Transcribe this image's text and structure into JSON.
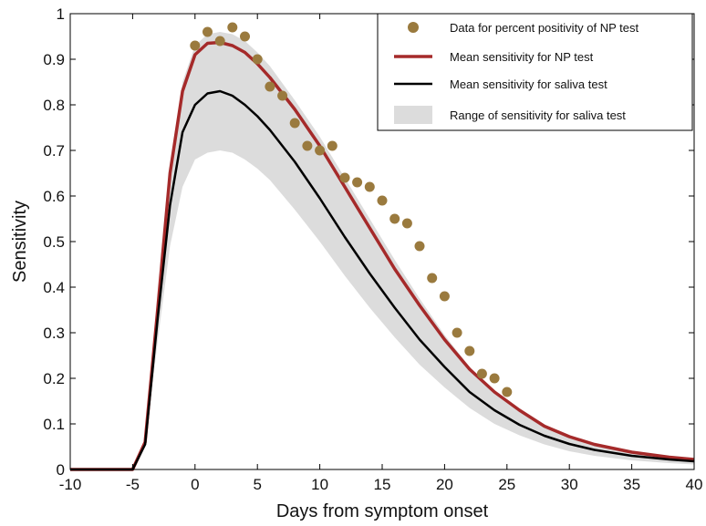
{
  "chart_data": {
    "type": "line",
    "xlabel": "Days from symptom onset",
    "ylabel": "Sensitivity",
    "xlim": [
      -10,
      40
    ],
    "ylim": [
      0,
      1
    ],
    "xticks": [
      -10,
      -5,
      0,
      5,
      10,
      15,
      20,
      25,
      30,
      35,
      40
    ],
    "yticks": [
      0,
      0.1,
      0.2,
      0.3,
      0.4,
      0.5,
      0.6,
      0.7,
      0.8,
      0.9,
      1
    ],
    "yticklabels": [
      "0",
      "0.1",
      "0.2",
      "0.3",
      "0.4",
      "0.5",
      "0.6",
      "0.7",
      "0.8",
      "0.9",
      "1"
    ],
    "grid": false,
    "legend_position": "top-right",
    "colors": {
      "data_points": "#9a7a3e",
      "np_mean": "#a52a2a",
      "saliva_mean": "#000000",
      "saliva_range": "#dcdcdc"
    },
    "series": [
      {
        "name": "Data for percent positivity of NP test",
        "kind": "scatter",
        "x": [
          0,
          1,
          2,
          3,
          4,
          5,
          6,
          7,
          8,
          9,
          10,
          11,
          12,
          13,
          14,
          15,
          16,
          17,
          18,
          19,
          20,
          21,
          22,
          23,
          24,
          25
        ],
        "y": [
          0.93,
          0.96,
          0.94,
          0.97,
          0.95,
          0.9,
          0.84,
          0.82,
          0.76,
          0.71,
          0.7,
          0.71,
          0.64,
          0.63,
          0.62,
          0.59,
          0.55,
          0.54,
          0.49,
          0.42,
          0.38,
          0.3,
          0.26,
          0.21,
          0.2,
          0.17
        ]
      },
      {
        "name": "Mean sensitivity for NP test",
        "kind": "line",
        "x": [
          -10,
          -5,
          -4,
          -3,
          -2,
          -1,
          0,
          1,
          2,
          3,
          4,
          5,
          6,
          8,
          10,
          12,
          14,
          16,
          18,
          20,
          22,
          24,
          26,
          28,
          30,
          32,
          35,
          38,
          40
        ],
        "y": [
          0,
          0,
          0.06,
          0.35,
          0.65,
          0.83,
          0.91,
          0.935,
          0.937,
          0.93,
          0.915,
          0.89,
          0.86,
          0.79,
          0.71,
          0.62,
          0.53,
          0.44,
          0.36,
          0.285,
          0.22,
          0.17,
          0.13,
          0.095,
          0.072,
          0.055,
          0.038,
          0.027,
          0.022
        ]
      },
      {
        "name": "Mean sensitivity for saliva test",
        "kind": "line",
        "x": [
          -10,
          -5,
          -4,
          -3,
          -2,
          -1,
          0,
          1,
          2,
          3,
          4,
          5,
          6,
          8,
          10,
          12,
          14,
          16,
          18,
          20,
          22,
          24,
          26,
          28,
          30,
          32,
          35,
          38,
          40
        ],
        "y": [
          0,
          0,
          0.055,
          0.33,
          0.58,
          0.74,
          0.8,
          0.825,
          0.83,
          0.82,
          0.8,
          0.775,
          0.745,
          0.675,
          0.595,
          0.51,
          0.43,
          0.355,
          0.285,
          0.225,
          0.17,
          0.13,
          0.098,
          0.074,
          0.056,
          0.043,
          0.03,
          0.022,
          0.018
        ]
      },
      {
        "name": "Range of sensitivity for saliva test",
        "kind": "area",
        "x": [
          -10,
          -5,
          -4,
          -3,
          -2,
          -1,
          0,
          1,
          2,
          3,
          4,
          5,
          6,
          8,
          10,
          12,
          14,
          16,
          18,
          20,
          22,
          24,
          26,
          28,
          30,
          32,
          35,
          38,
          40
        ],
        "upper": [
          0,
          0,
          0.06,
          0.36,
          0.66,
          0.85,
          0.93,
          0.955,
          0.96,
          0.955,
          0.94,
          0.915,
          0.885,
          0.81,
          0.73,
          0.64,
          0.55,
          0.46,
          0.375,
          0.295,
          0.225,
          0.17,
          0.128,
          0.093,
          0.07,
          0.053,
          0.036,
          0.025,
          0.021
        ],
        "lower": [
          0,
          0,
          0.05,
          0.28,
          0.49,
          0.62,
          0.68,
          0.695,
          0.7,
          0.695,
          0.68,
          0.66,
          0.635,
          0.57,
          0.5,
          0.425,
          0.355,
          0.29,
          0.23,
          0.18,
          0.135,
          0.1,
          0.075,
          0.055,
          0.04,
          0.03,
          0.02,
          0.014,
          0.011
        ]
      }
    ]
  }
}
